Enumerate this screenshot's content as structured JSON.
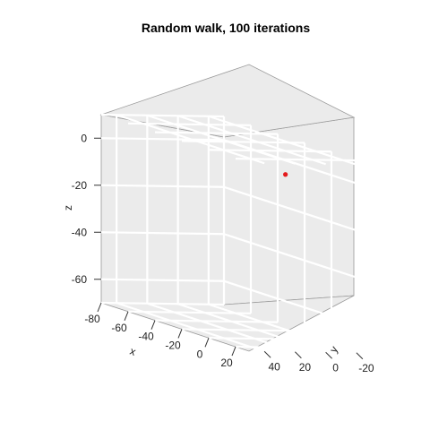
{
  "chart_data": {
    "type": "scatter",
    "title": "Random walk, 100 iterations",
    "xlabel": "x",
    "ylabel": "y",
    "zlabel": "z",
    "xlim": [
      -80,
      30
    ],
    "ylim": [
      -30,
      50
    ],
    "zlim": [
      -70,
      10
    ],
    "x_ticks": [
      -80,
      -60,
      -40,
      -20,
      0,
      20
    ],
    "y_ticks": [
      -20,
      0,
      20,
      40
    ],
    "z_ticks": [
      -60,
      -40,
      -20,
      0
    ],
    "point_color": "#e41a1c",
    "points": [
      {
        "x": 0,
        "y": 0,
        "z": 0
      }
    ]
  }
}
